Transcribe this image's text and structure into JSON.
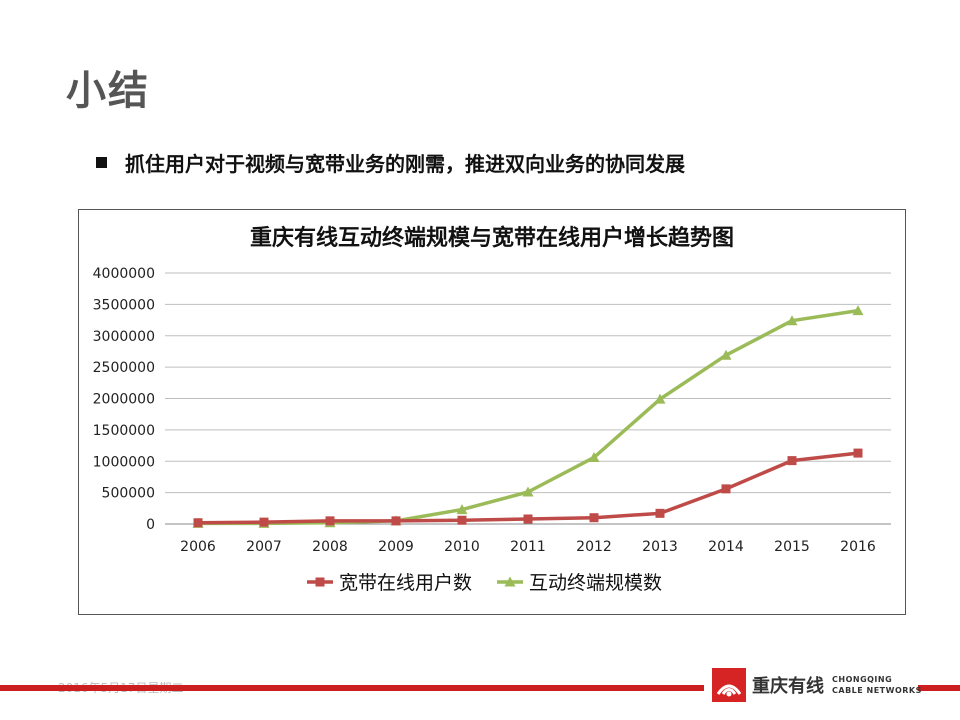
{
  "slide": {
    "title": "小结",
    "bullet": "抓住用户对于视频与宽带业务的刚需，推进双向业务的协同发展"
  },
  "chart_data": {
    "type": "line",
    "title": "重庆有线互动终端规模与宽带在线用户增长趋势图",
    "xlabel": "",
    "ylabel": "",
    "categories": [
      "2006",
      "2007",
      "2008",
      "2009",
      "2010",
      "2011",
      "2012",
      "2013",
      "2014",
      "2015",
      "2016"
    ],
    "ylim": [
      0,
      4000000
    ],
    "yticks": [
      0,
      500000,
      1000000,
      1500000,
      2000000,
      2500000,
      3000000,
      3500000,
      4000000
    ],
    "grid": true,
    "legend": "bottom",
    "series": [
      {
        "name": "宽带在线用户数",
        "color": "#be4b48",
        "marker": "square",
        "values": [
          20000,
          30000,
          50000,
          50000,
          60000,
          80000,
          100000,
          170000,
          560000,
          1010000,
          1130000
        ]
      },
      {
        "name": "互动终端规模数",
        "color": "#9bbb59",
        "marker": "triangle",
        "values": [
          10000,
          10000,
          20000,
          50000,
          230000,
          510000,
          1060000,
          1990000,
          2690000,
          3240000,
          3400000
        ]
      }
    ]
  },
  "footer": {
    "date": "2016年5月17日星期二",
    "logo_cn": "重庆有线",
    "logo_en_line1": "CHONGQING",
    "logo_en_line2": "CABLE NETWORKS",
    "bar_color": "#cc1f1f"
  }
}
